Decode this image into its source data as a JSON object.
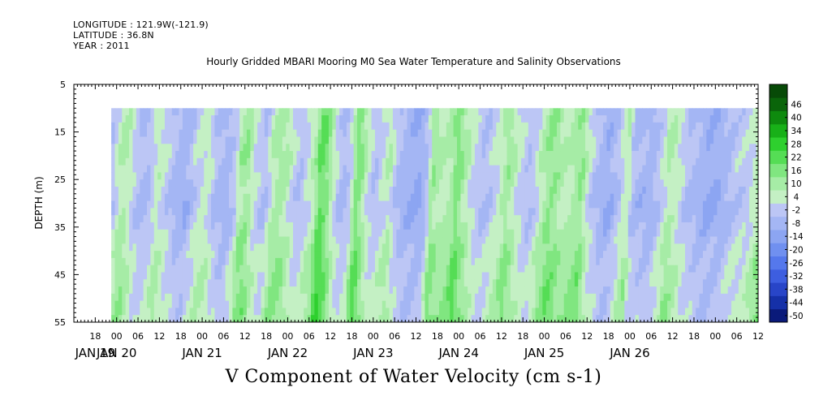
{
  "header": {
    "longitude": "LONGITUDE : 121.9W(-121.9)",
    "latitude": "LATITUDE : 36.8N",
    "year": "YEAR : 2011"
  },
  "chart_data": {
    "type": "heatmap",
    "title": "Hourly Gridded MBARI Mooring M0 Sea Water Temperature and Salinity Observations",
    "xlabel": "V Component of Water Velocity (cm s-1)",
    "ylabel": "DEPTH (m)",
    "y_axis": {
      "range": [
        5,
        55
      ],
      "ticks": [
        5,
        15,
        25,
        35,
        45,
        55
      ],
      "inverted": true
    },
    "x_axis": {
      "range_hours": [
        -12,
        180
      ],
      "hour_ticks": [
        {
          "h": -6,
          "label": "18"
        },
        {
          "h": 0,
          "label": "00"
        },
        {
          "h": 6,
          "label": "06"
        },
        {
          "h": 12,
          "label": "12"
        },
        {
          "h": 18,
          "label": "18"
        },
        {
          "h": 24,
          "label": "00"
        },
        {
          "h": 30,
          "label": "06"
        },
        {
          "h": 36,
          "label": "12"
        },
        {
          "h": 42,
          "label": "18"
        },
        {
          "h": 48,
          "label": "00"
        },
        {
          "h": 54,
          "label": "06"
        },
        {
          "h": 60,
          "label": "12"
        },
        {
          "h": 66,
          "label": "18"
        },
        {
          "h": 72,
          "label": "00"
        },
        {
          "h": 78,
          "label": "06"
        },
        {
          "h": 84,
          "label": "12"
        },
        {
          "h": 90,
          "label": "18"
        },
        {
          "h": 96,
          "label": "00"
        },
        {
          "h": 102,
          "label": "06"
        },
        {
          "h": 108,
          "label": "12"
        },
        {
          "h": 114,
          "label": "18"
        },
        {
          "h": 120,
          "label": "00"
        },
        {
          "h": 126,
          "label": "06"
        },
        {
          "h": 132,
          "label": "12"
        },
        {
          "h": 138,
          "label": "18"
        },
        {
          "h": 144,
          "label": "00"
        },
        {
          "h": 150,
          "label": "06"
        },
        {
          "h": 156,
          "label": "12"
        },
        {
          "h": 162,
          "label": "18"
        },
        {
          "h": 168,
          "label": "00"
        },
        {
          "h": 174,
          "label": "06"
        },
        {
          "h": 180,
          "label": "12"
        }
      ],
      "day_labels": [
        {
          "h": -6,
          "label": "JAN 19"
        },
        {
          "h": 0,
          "label": "JAN 20"
        },
        {
          "h": 24,
          "label": "JAN 21"
        },
        {
          "h": 48,
          "label": "JAN 22"
        },
        {
          "h": 72,
          "label": "JAN 23"
        },
        {
          "h": 96,
          "label": "JAN 24"
        },
        {
          "h": 120,
          "label": "JAN 25"
        },
        {
          "h": 144,
          "label": "JAN 26"
        }
      ]
    },
    "data_extent": {
      "depth": [
        10,
        55
      ],
      "hours": [
        -1.5,
        183
      ]
    },
    "colorbar": {
      "levels": [
        -50,
        -44,
        -38,
        -32,
        -26,
        -20,
        -14,
        -8,
        -2,
        4,
        10,
        16,
        22,
        28,
        34,
        40,
        46
      ],
      "colors": [
        "#0a1a7a",
        "#1530a8",
        "#2845c8",
        "#3d5ee0",
        "#5578ec",
        "#7090f0",
        "#8ca5f2",
        "#a4b6f4",
        "#bcc6f5",
        "#c4f0c4",
        "#a6eca6",
        "#80e680",
        "#55dd55",
        "#2ed02e",
        "#18b018",
        "#0e8a0e",
        "#0a650a",
        "#074a07"
      ]
    },
    "grid": false,
    "profile": [
      [
        -1.5,
        -8
      ],
      [
        0,
        -4
      ],
      [
        1,
        2
      ],
      [
        3,
        4
      ],
      [
        5,
        -4
      ],
      [
        8,
        -10
      ],
      [
        10,
        -6
      ],
      [
        12,
        2
      ],
      [
        14,
        -4
      ],
      [
        17,
        -10
      ],
      [
        20,
        -12
      ],
      [
        22,
        -6
      ],
      [
        24,
        -2
      ],
      [
        26,
        0
      ],
      [
        28,
        -8
      ],
      [
        31,
        -12
      ],
      [
        34,
        -4
      ],
      [
        35,
        6
      ],
      [
        37,
        8
      ],
      [
        39,
        -2
      ],
      [
        42,
        -8
      ],
      [
        44,
        2
      ],
      [
        46,
        6
      ],
      [
        48,
        4
      ],
      [
        50,
        -4
      ],
      [
        52,
        -8
      ],
      [
        54,
        -2
      ],
      [
        56,
        4
      ],
      [
        57,
        14
      ],
      [
        58,
        18
      ],
      [
        60,
        8
      ],
      [
        62,
        -4
      ],
      [
        64,
        -10
      ],
      [
        66,
        -4
      ],
      [
        67,
        6
      ],
      [
        68,
        14
      ],
      [
        69,
        10
      ],
      [
        71,
        -2
      ],
      [
        73,
        -8
      ],
      [
        75,
        -2
      ],
      [
        77,
        2
      ],
      [
        79,
        -8
      ],
      [
        82,
        -12
      ],
      [
        85,
        -14
      ],
      [
        87,
        -10
      ],
      [
        88,
        -2
      ],
      [
        89,
        8
      ],
      [
        90,
        6
      ],
      [
        92,
        2
      ],
      [
        94,
        4
      ],
      [
        95,
        10
      ],
      [
        96,
        14
      ],
      [
        97,
        8
      ],
      [
        99,
        2
      ],
      [
        101,
        -4
      ],
      [
        103,
        -8
      ],
      [
        105,
        -6
      ],
      [
        107,
        -2
      ],
      [
        109,
        4
      ],
      [
        110,
        8
      ],
      [
        112,
        2
      ],
      [
        114,
        -4
      ],
      [
        116,
        -8
      ],
      [
        118,
        -4
      ],
      [
        120,
        4
      ],
      [
        122,
        10
      ],
      [
        124,
        8
      ],
      [
        125,
        4
      ],
      [
        127,
        2
      ],
      [
        129,
        6
      ],
      [
        131,
        10
      ],
      [
        132,
        2
      ],
      [
        134,
        -6
      ],
      [
        136,
        -10
      ],
      [
        138,
        -14
      ],
      [
        140,
        -10
      ],
      [
        142,
        -4
      ],
      [
        143,
        0
      ],
      [
        144,
        4
      ],
      [
        145,
        -8
      ],
      [
        147,
        -10
      ],
      [
        150,
        -12
      ],
      [
        152,
        -8
      ],
      [
        154,
        -2
      ],
      [
        155,
        4
      ],
      [
        157,
        2
      ],
      [
        159,
        -4
      ],
      [
        161,
        -8
      ],
      [
        163,
        -10
      ],
      [
        166,
        -14
      ],
      [
        170,
        -12
      ],
      [
        174,
        -6
      ],
      [
        178,
        -4
      ],
      [
        180,
        2
      ],
      [
        182,
        10
      ],
      [
        183,
        6
      ]
    ],
    "depth_variation": [
      [
        10,
        0
      ],
      [
        20,
        2
      ],
      [
        30,
        -2
      ],
      [
        40,
        4
      ],
      [
        55,
        6
      ]
    ]
  }
}
